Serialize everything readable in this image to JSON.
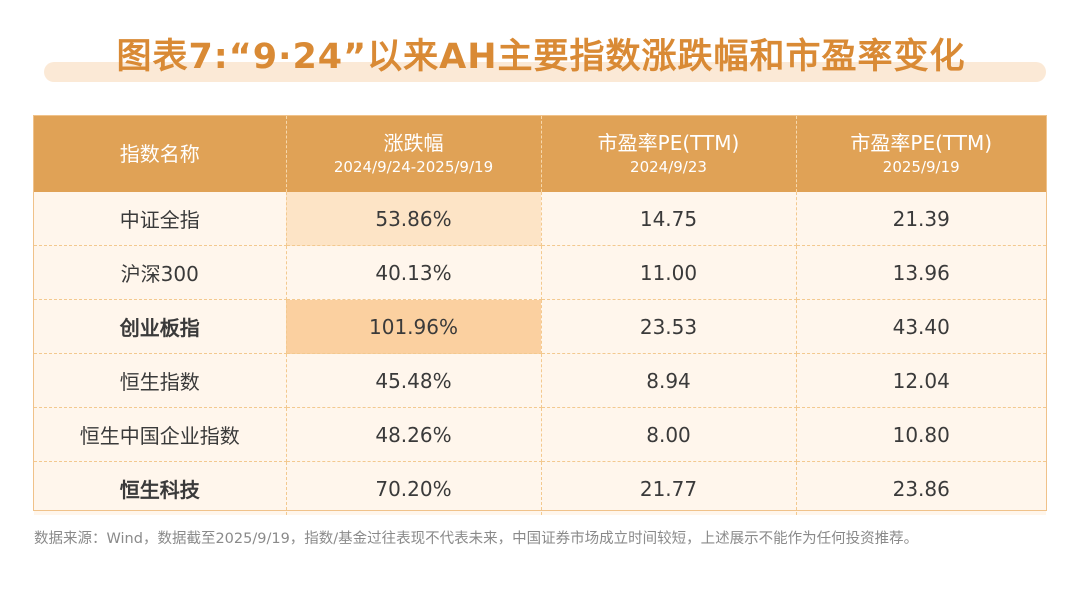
{
  "title": "图表7:“9·24”以来AH主要指数涨跌幅和市盈率变化",
  "table": {
    "headers": [
      {
        "main": "指数名称",
        "sub": ""
      },
      {
        "main": "涨跌幅",
        "sub": "2024/9/24-2025/9/19"
      },
      {
        "main": "市盈率PE(TTM)",
        "sub": "2024/9/23"
      },
      {
        "main": "市盈率PE(TTM)",
        "sub": "2025/9/19"
      }
    ],
    "rows": [
      {
        "name": "中证全指",
        "change": "53.86%",
        "pe_start": "14.75",
        "pe_end": "21.39"
      },
      {
        "name": "沪深300",
        "change": "40.13%",
        "pe_start": "11.00",
        "pe_end": "13.96"
      },
      {
        "name": "创业板指",
        "change": "101.96%",
        "pe_start": "23.53",
        "pe_end": "43.40"
      },
      {
        "name": "恒生指数",
        "change": "45.48%",
        "pe_start": "8.94",
        "pe_end": "12.04"
      },
      {
        "name": "恒生中国企业指数",
        "change": "48.26%",
        "pe_start": "8.00",
        "pe_end": "10.80"
      },
      {
        "name": "恒生科技",
        "change": "70.20%",
        "pe_start": "21.77",
        "pe_end": "23.86"
      }
    ]
  },
  "footnote": "数据来源：Wind，数据截至2025/9/19，指数/基金过往表现不代表未来，中国证券市场成立时间较短，上述展示不能作为任何投资推荐。",
  "colors": {
    "accent": "#d98a35",
    "header_bg": "#e0a256",
    "row_bg": "#fff6ec",
    "highlight_light": "#fde4c6",
    "highlight_strong": "#fbd0a0"
  }
}
